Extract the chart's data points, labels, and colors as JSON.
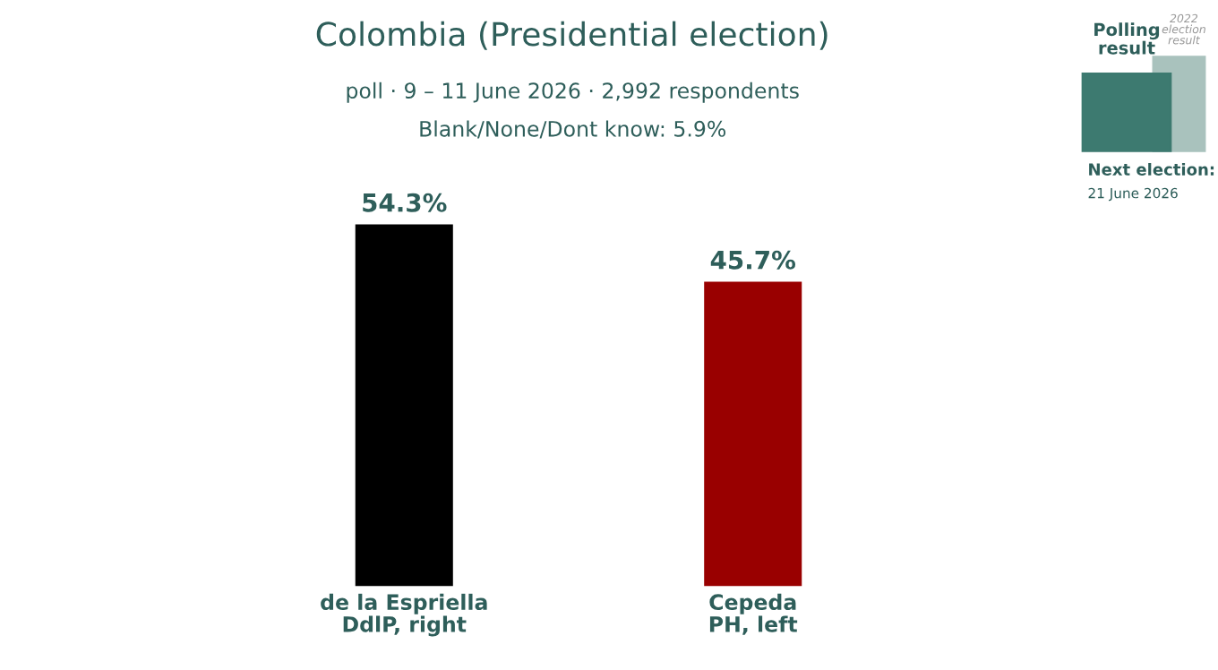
{
  "chart_data": {
    "type": "bar",
    "title": "Colombia (Presidential election)",
    "subtitle": "poll · 9 – 11 June 2026 · 2,992 respondents",
    "categories": [
      "de la Espriella\nDdlP, right",
      "Cepeda\nPH, left"
    ],
    "values": [
      54.3,
      45.7
    ],
    "colors": [
      "#000000",
      "#990000"
    ],
    "value_labels": [
      "54.3%",
      "45.7%"
    ],
    "annotations": [
      "Blank/None/Dont know: 5.9%",
      "Polling\nresult",
      "2022\nelection\nresult",
      "Next election:",
      "21 June 2026"
    ]
  }
}
